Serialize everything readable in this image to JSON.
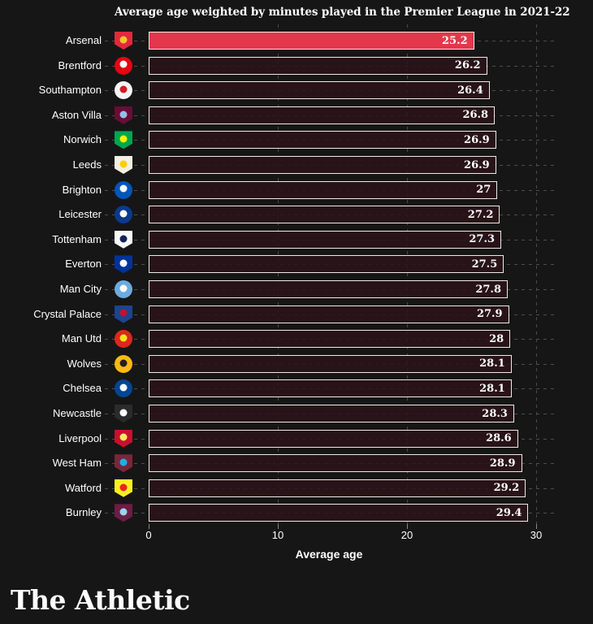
{
  "title": "Average age weighted by minutes played in the Premier League in 2021-22",
  "branding": {
    "logo_text": "The Athletic"
  },
  "colors": {
    "background": "#171616",
    "bar_fill": "#2a141a",
    "bar_border": "#f0eae6",
    "highlight_bar": "#e4374b",
    "dashed_grid": "#4d4d4d",
    "text": "#ffffff"
  },
  "chart_data": {
    "type": "bar",
    "orientation": "horizontal",
    "title": "Average age weighted by minutes played in the Premier League in 2021-22",
    "xlabel": "Average age",
    "ylabel": "",
    "xlim": [
      0,
      30
    ],
    "xticks": [
      "0",
      "10",
      "20",
      "30"
    ],
    "grid": "dashed vertical gridlines at 10, 20, 30; dashed leader line per row",
    "legend": "none",
    "highlighted_category": "Arsenal",
    "teams": [
      {
        "name": "Arsenal",
        "value": 25.2,
        "display": "25.2",
        "highlighted": true,
        "logo": {
          "shape": "shield",
          "bg": "#e3283c",
          "accent": "#f4c52e"
        }
      },
      {
        "name": "Brentford",
        "value": 26.2,
        "display": "26.2",
        "highlighted": false,
        "logo": {
          "shape": "circle",
          "bg": "#e30613",
          "accent": "#ffffff"
        }
      },
      {
        "name": "Southampton",
        "value": 26.4,
        "display": "26.4",
        "highlighted": false,
        "logo": {
          "shape": "circle",
          "bg": "#f5f5f5",
          "accent": "#d71920"
        }
      },
      {
        "name": "Aston Villa",
        "value": 26.8,
        "display": "26.8",
        "highlighted": false,
        "logo": {
          "shape": "shield",
          "bg": "#670e36",
          "accent": "#95bfe5"
        }
      },
      {
        "name": "Norwich",
        "value": 26.9,
        "display": "26.9",
        "highlighted": false,
        "logo": {
          "shape": "shield",
          "bg": "#00a650",
          "accent": "#fff200"
        }
      },
      {
        "name": "Leeds",
        "value": 26.9,
        "display": "26.9",
        "highlighted": false,
        "logo": {
          "shape": "shield",
          "bg": "#f2efe4",
          "accent": "#ffcd00"
        }
      },
      {
        "name": "Brighton",
        "value": 27.0,
        "display": "27",
        "highlighted": false,
        "logo": {
          "shape": "circle",
          "bg": "#0057b8",
          "accent": "#ffffff"
        }
      },
      {
        "name": "Leicester",
        "value": 27.2,
        "display": "27.2",
        "highlighted": false,
        "logo": {
          "shape": "circle",
          "bg": "#0a3a8d",
          "accent": "#ffffff"
        }
      },
      {
        "name": "Tottenham",
        "value": 27.3,
        "display": "27.3",
        "highlighted": false,
        "logo": {
          "shape": "shield",
          "bg": "#f8f8f8",
          "accent": "#132257"
        }
      },
      {
        "name": "Everton",
        "value": 27.5,
        "display": "27.5",
        "highlighted": false,
        "logo": {
          "shape": "shield",
          "bg": "#003399",
          "accent": "#ffffff"
        }
      },
      {
        "name": "Man City",
        "value": 27.8,
        "display": "27.8",
        "highlighted": false,
        "logo": {
          "shape": "circle",
          "bg": "#6cabdd",
          "accent": "#ffffff"
        }
      },
      {
        "name": "Crystal Palace",
        "value": 27.9,
        "display": "27.9",
        "highlighted": false,
        "logo": {
          "shape": "shield",
          "bg": "#1b458f",
          "accent": "#c4122e"
        }
      },
      {
        "name": "Man Utd",
        "value": 28.0,
        "display": "28",
        "highlighted": false,
        "logo": {
          "shape": "circle",
          "bg": "#da291c",
          "accent": "#fbe122"
        }
      },
      {
        "name": "Wolves",
        "value": 28.1,
        "display": "28.1",
        "highlighted": false,
        "logo": {
          "shape": "circle",
          "bg": "#fdb913",
          "accent": "#231f20"
        }
      },
      {
        "name": "Chelsea",
        "value": 28.1,
        "display": "28.1",
        "highlighted": false,
        "logo": {
          "shape": "circle",
          "bg": "#034694",
          "accent": "#ffffff"
        }
      },
      {
        "name": "Newcastle",
        "value": 28.3,
        "display": "28.3",
        "highlighted": false,
        "logo": {
          "shape": "shield",
          "bg": "#2b2b2b",
          "accent": "#ffffff"
        }
      },
      {
        "name": "Liverpool",
        "value": 28.6,
        "display": "28.6",
        "highlighted": false,
        "logo": {
          "shape": "shield",
          "bg": "#c8102e",
          "accent": "#f6eb61"
        }
      },
      {
        "name": "West Ham",
        "value": 28.9,
        "display": "28.9",
        "highlighted": false,
        "logo": {
          "shape": "shield",
          "bg": "#7a263a",
          "accent": "#1bb1e7"
        }
      },
      {
        "name": "Watford",
        "value": 29.2,
        "display": "29.2",
        "highlighted": false,
        "logo": {
          "shape": "shield",
          "bg": "#fbee23",
          "accent": "#ed2127"
        }
      },
      {
        "name": "Burnley",
        "value": 29.4,
        "display": "29.4",
        "highlighted": false,
        "logo": {
          "shape": "shield",
          "bg": "#6c1d45",
          "accent": "#99d6ea"
        }
      }
    ]
  }
}
